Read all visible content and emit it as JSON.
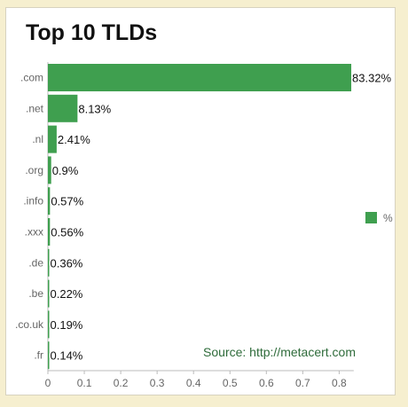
{
  "chart_data": {
    "type": "bar",
    "orientation": "horizontal",
    "title": "Top 10 TLDs",
    "categories": [
      ".com",
      ".net",
      ".nl",
      ".org",
      ".info",
      ".xxx",
      ".de",
      ".be",
      ".co.uk",
      ".fr"
    ],
    "series": [
      {
        "name": "%",
        "values": [
          0.8332,
          0.0813,
          0.0241,
          0.009,
          0.0057,
          0.0056,
          0.0036,
          0.0022,
          0.0019,
          0.0014
        ],
        "data_labels": [
          "83.32%",
          "8.13%",
          "2.41%",
          "0.9%",
          "0.57%",
          "0.56%",
          "0.36%",
          "0.22%",
          "0.19%",
          "0.14%"
        ]
      }
    ],
    "x_ticks": [
      "0",
      "0.1",
      "0.2",
      "0.3",
      "0.4",
      "0.5",
      "0.6",
      "0.7",
      "0.8"
    ],
    "xlim": [
      0,
      0.85
    ],
    "grid": false,
    "legend": "right",
    "annotation": "Source: http://metacert.com",
    "bar_color": "#3f9f4f"
  }
}
